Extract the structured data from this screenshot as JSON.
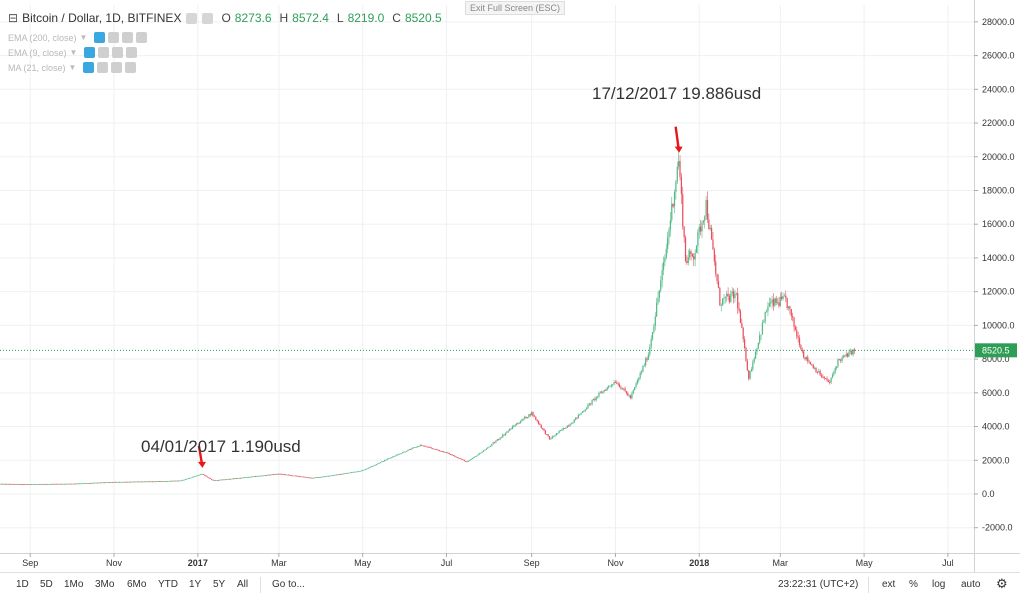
{
  "header": {
    "symbol": "Bitcoin / Dollar, 1D, BITFINEX",
    "ohlc": [
      {
        "key": "O",
        "value": "8273.6"
      },
      {
        "key": "H",
        "value": "8572.4"
      },
      {
        "key": "L",
        "value": "8219.0"
      },
      {
        "key": "C",
        "value": "8520.5"
      }
    ],
    "exit_fullscreen": "Exit Full Screen (ESC)"
  },
  "indicators": [
    {
      "label": "EMA (200, close)"
    },
    {
      "label": "EMA (9, close)"
    },
    {
      "label": "MA (21, close)"
    }
  ],
  "annotations": {
    "peak": "17/12/2017  19.886usd",
    "start": "04/01/2017     1.190usd"
  },
  "bottom_bar": {
    "timeframes": [
      "1D",
      "5D",
      "1Mo",
      "3Mo",
      "6Mo",
      "YTD",
      "1Y",
      "5Y",
      "All"
    ],
    "goto": "Go to...",
    "clock": "23:22:31 (UTC+2)",
    "options": [
      "ext",
      "%",
      "log",
      "auto"
    ]
  },
  "colors": {
    "up": "#53b987",
    "down": "#eb4d5c",
    "price_line": "#2e9e57",
    "arrow": "#e8151b",
    "grid": "#eef0f2"
  },
  "chart_data": {
    "type": "candlestick",
    "title": "Bitcoin / Dollar, 1D, BITFINEX",
    "ylim": [
      -3500,
      29000
    ],
    "y_ticks": [
      -2000,
      0,
      2000,
      4000,
      6000,
      8000,
      10000,
      12000,
      14000,
      16000,
      18000,
      20000,
      22000,
      24000,
      26000,
      28000
    ],
    "y_tick_labels": [
      "-2000.0",
      "0.0",
      "2000.0",
      "4000.0",
      "6000.0",
      "8000.0",
      "10000.0",
      "12000.0",
      "14000.0",
      "16000.0",
      "18000.0",
      "20000.0",
      "22000.0",
      "24000.0",
      "26000.0",
      "28000.0"
    ],
    "x_range": [
      "2016-08-10",
      "2018-07-20"
    ],
    "x_ticks": [
      {
        "date": "2016-09-01",
        "label": "Sep",
        "bold": false
      },
      {
        "date": "2016-11-01",
        "label": "Nov",
        "bold": false
      },
      {
        "date": "2017-01-01",
        "label": "2017",
        "bold": true
      },
      {
        "date": "2017-03-01",
        "label": "Mar",
        "bold": false
      },
      {
        "date": "2017-05-01",
        "label": "May",
        "bold": false
      },
      {
        "date": "2017-07-01",
        "label": "Jul",
        "bold": false
      },
      {
        "date": "2017-09-01",
        "label": "Sep",
        "bold": false
      },
      {
        "date": "2017-11-01",
        "label": "Nov",
        "bold": false
      },
      {
        "date": "2018-01-01",
        "label": "2018",
        "bold": true
      },
      {
        "date": "2018-03-01",
        "label": "Mar",
        "bold": false
      },
      {
        "date": "2018-05-01",
        "label": "May",
        "bold": false
      },
      {
        "date": "2018-07-01",
        "label": "Jul",
        "bold": false
      }
    ],
    "grid": true,
    "last_price": 8520.5,
    "last_price_label": "8520.5",
    "close_series": {
      "start": "2016-08-10",
      "end": "2018-04-24",
      "points": [
        [
          "2016-08-10",
          600
        ],
        [
          "2016-09-01",
          580
        ],
        [
          "2016-10-01",
          610
        ],
        [
          "2016-11-01",
          710
        ],
        [
          "2016-12-01",
          750
        ],
        [
          "2016-12-20",
          800
        ],
        [
          "2017-01-04",
          1190
        ],
        [
          "2017-01-12",
          800
        ],
        [
          "2017-02-01",
          960
        ],
        [
          "2017-03-01",
          1200
        ],
        [
          "2017-03-25",
          950
        ],
        [
          "2017-04-15",
          1180
        ],
        [
          "2017-05-01",
          1400
        ],
        [
          "2017-05-25",
          2300
        ],
        [
          "2017-06-12",
          2900
        ],
        [
          "2017-07-01",
          2450
        ],
        [
          "2017-07-16",
          1900
        ],
        [
          "2017-08-01",
          2800
        ],
        [
          "2017-08-20",
          4100
        ],
        [
          "2017-09-01",
          4800
        ],
        [
          "2017-09-14",
          3250
        ],
        [
          "2017-10-01",
          4300
        ],
        [
          "2017-10-20",
          5900
        ],
        [
          "2017-11-01",
          6700
        ],
        [
          "2017-11-12",
          5700
        ],
        [
          "2017-11-25",
          8300
        ],
        [
          "2017-12-07",
          14000
        ],
        [
          "2017-12-17",
          19886
        ],
        [
          "2017-12-22",
          13900
        ],
        [
          "2017-12-28",
          14200
        ],
        [
          "2018-01-06",
          17200
        ],
        [
          "2018-01-16",
          11400
        ],
        [
          "2018-01-28",
          11800
        ],
        [
          "2018-02-06",
          6900
        ],
        [
          "2018-02-20",
          11200
        ],
        [
          "2018-03-05",
          11500
        ],
        [
          "2018-03-18",
          8200
        ],
        [
          "2018-04-01",
          6900
        ],
        [
          "2018-04-06",
          6600
        ],
        [
          "2018-04-12",
          7900
        ],
        [
          "2018-04-24",
          8520
        ]
      ]
    }
  }
}
